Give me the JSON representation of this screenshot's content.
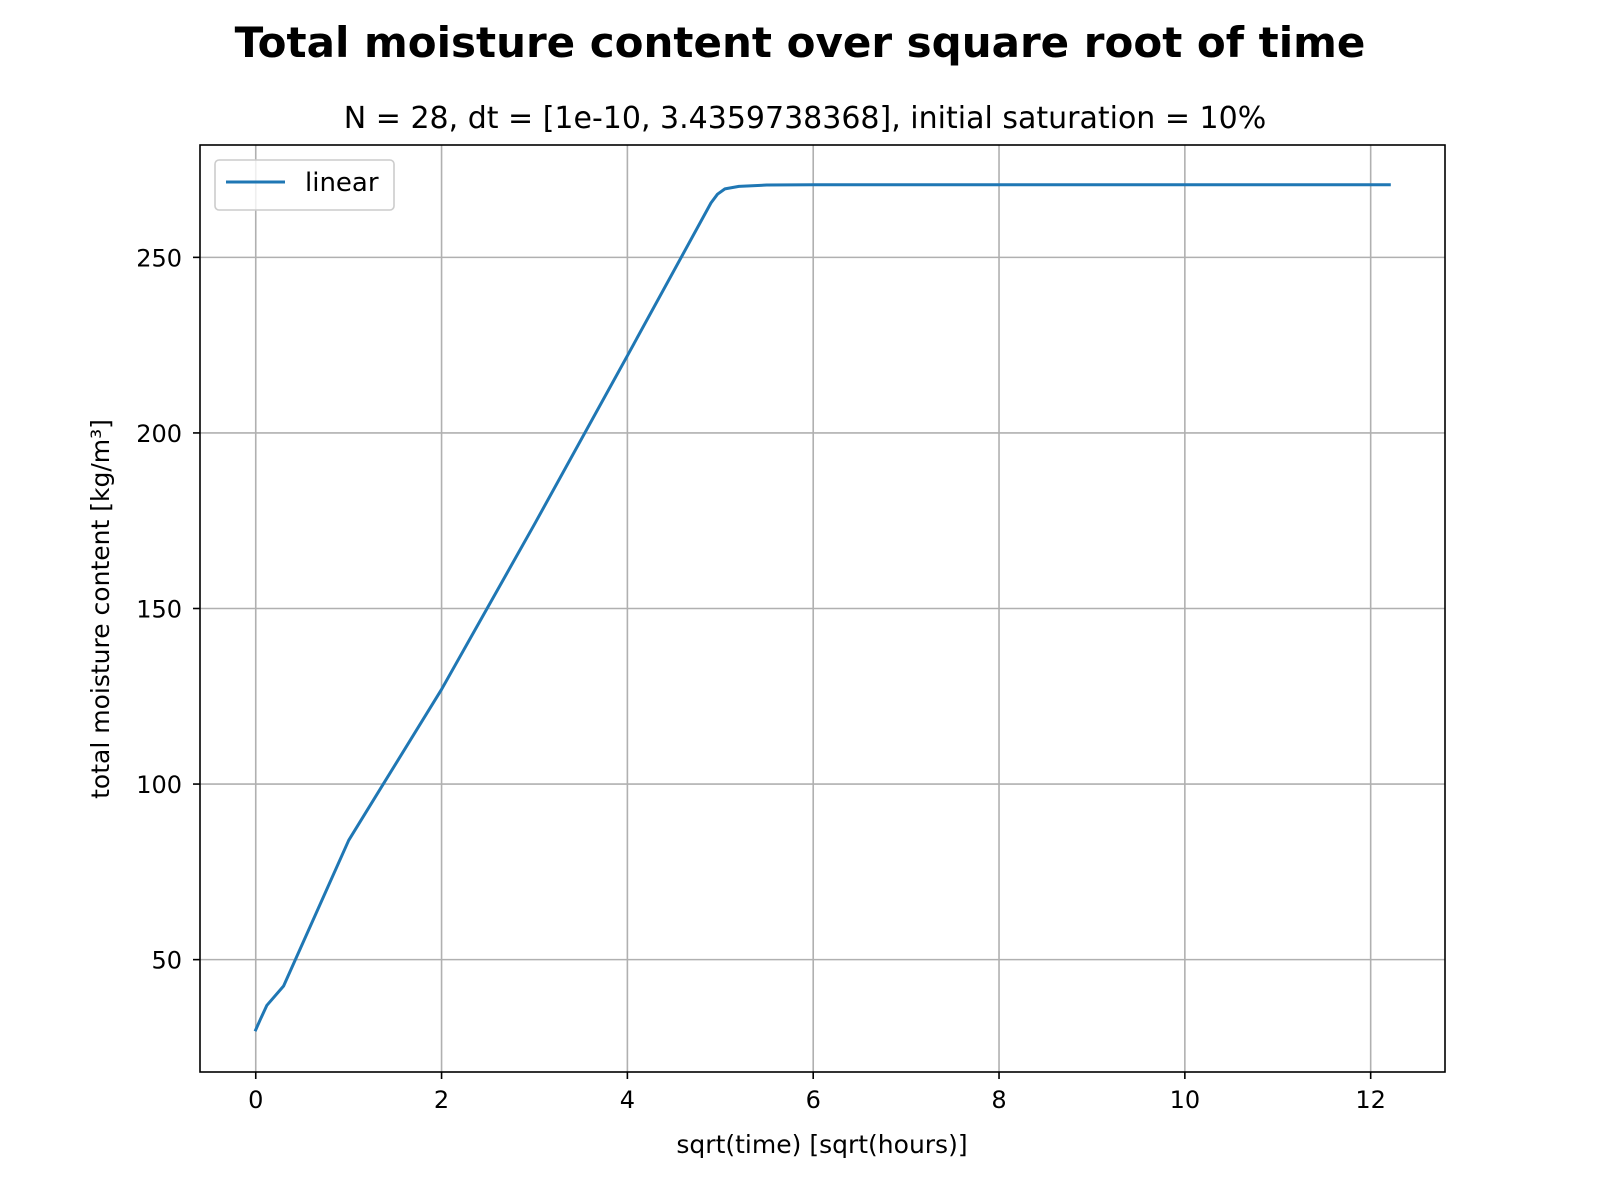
{
  "chart_data": {
    "type": "line",
    "title": "Total moisture content over square root of time",
    "subtitle": "N = 28, dt = [1e-10, 3.4359738368], initial saturation = 10%",
    "xlabel": "sqrt(time) [sqrt(hours)]",
    "ylabel": "total moisture content [kg/m³]",
    "xlim": [
      -0.6,
      12.8
    ],
    "ylim": [
      18,
      282
    ],
    "xticks": [
      0,
      2,
      4,
      6,
      8,
      10,
      12
    ],
    "yticks": [
      50,
      100,
      150,
      200,
      250
    ],
    "grid": true,
    "legend_position": "upper-left",
    "series": [
      {
        "name": "linear",
        "color": "#1f77b4",
        "x": [
          0,
          0.05,
          0.12,
          0.3,
          1.0,
          2.0,
          3.0,
          4.0,
          4.9,
          4.97,
          5.05,
          5.2,
          5.5,
          6.0,
          8.0,
          10.0,
          12.2
        ],
        "y": [
          30,
          33,
          37,
          42.5,
          84,
          127,
          174,
          222,
          265.5,
          268,
          269.5,
          270.2,
          270.6,
          270.7,
          270.7,
          270.7,
          270.7
        ]
      }
    ]
  }
}
